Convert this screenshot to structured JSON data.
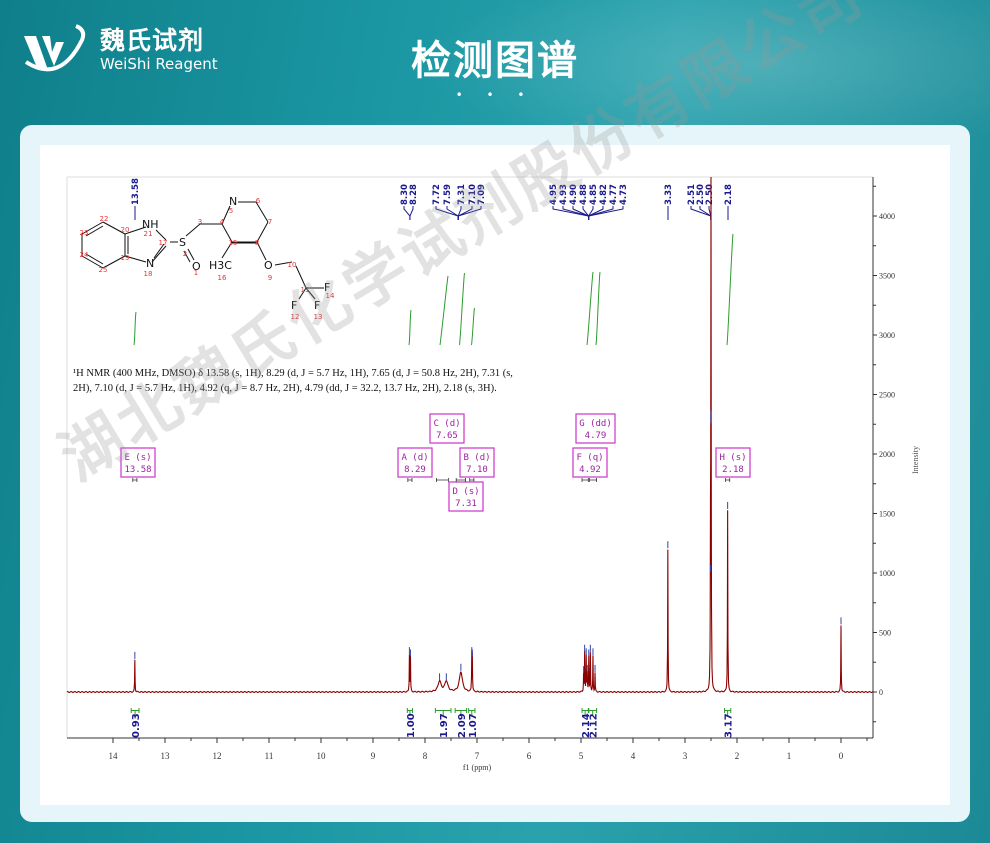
{
  "header": {
    "logo_cn": "魏氏试剂",
    "logo_en": "WeiShi Reagent",
    "title": "检测图谱",
    "dots": "• • •"
  },
  "watermark": "湖北魏氏化学试剂股份有限公司",
  "colors": {
    "spectrum": "#8b0000",
    "integral": "#2e9b2e",
    "peak_label": "#1a1a8c",
    "multiplet_box": "#cc33cc",
    "header_bg": "#1a97a3"
  },
  "nmr_description": "¹H NMR (400 MHz, DMSO) δ 13.58 (s, 1H), 8.29 (d, J = 5.7 Hz, 1H), 7.65 (d, J = 50.8 Hz, 2H), 7.31 (s, 2H), 7.10 (d, J = 5.7 Hz, 1H), 4.92 (q, J = 8.7 Hz, 2H), 4.79 (dd, J = 32.2, 13.7 Hz, 2H), 2.18 (s, 3H).",
  "structure": {
    "atoms": [
      "NH",
      "N",
      "S",
      "O",
      "N",
      "H3C",
      "O",
      "F",
      "F",
      "F"
    ],
    "numbers": [
      "1",
      "2",
      "3",
      "4",
      "5",
      "6",
      "7",
      "8",
      "9",
      "10",
      "11",
      "12",
      "13",
      "14",
      "15",
      "16",
      "17",
      "18",
      "19",
      "20",
      "21",
      "22",
      "23",
      "24",
      "25"
    ]
  },
  "chart_data": {
    "type": "line",
    "xlabel": "f1 (ppm)",
    "ylabel": "Intensity",
    "xlim": [
      14.5,
      -0.6
    ],
    "ylim": [
      -350,
      4300
    ],
    "x_ticks": [
      "14",
      "13",
      "12",
      "11",
      "10",
      "9",
      "8",
      "7",
      "6",
      "5",
      "4",
      "3",
      "2",
      "1",
      "0"
    ],
    "y_ticks": [
      "0",
      "500",
      "1000",
      "1500",
      "2000",
      "2500",
      "3000",
      "3500",
      "4000"
    ],
    "peaks": [
      [
        13.58,
        270
      ],
      [
        8.3,
        310
      ],
      [
        8.28,
        290
      ],
      [
        7.72,
        90
      ],
      [
        7.59,
        90
      ],
      [
        7.31,
        170
      ],
      [
        7.1,
        310
      ],
      [
        7.09,
        290
      ],
      [
        4.95,
        150
      ],
      [
        4.93,
        330
      ],
      [
        4.9,
        300
      ],
      [
        4.88,
        160
      ],
      [
        4.85,
        290
      ],
      [
        4.82,
        330
      ],
      [
        4.77,
        300
      ],
      [
        4.73,
        160
      ],
      [
        3.33,
        1200
      ],
      [
        2.51,
        1000
      ],
      [
        2.5,
        2300
      ],
      [
        2.5,
        2250
      ],
      [
        2.18,
        1530
      ],
      [
        0.0,
        560
      ]
    ],
    "peak_labels": [
      {
        "group": [
          13.58
        ],
        "labels": [
          "13.58"
        ]
      },
      {
        "group": [
          8.3,
          8.28
        ],
        "labels": [
          "8.30",
          "8.28"
        ]
      },
      {
        "group": [
          7.72,
          7.59,
          7.31,
          7.1,
          7.09
        ],
        "labels": [
          "7.72",
          "7.59",
          "7.31",
          "7.10",
          "7.09"
        ]
      },
      {
        "group": [
          4.95,
          4.93,
          4.9,
          4.88,
          4.85,
          4.82,
          4.77,
          4.73
        ],
        "labels": [
          "4.95",
          "4.93",
          "4.90",
          "4.88",
          "4.85",
          "4.82",
          "4.77",
          "4.73"
        ]
      },
      {
        "group": [
          3.33
        ],
        "labels": [
          "3.33"
        ]
      },
      {
        "group": [
          2.51,
          2.5,
          2.5
        ],
        "labels": [
          "2.51",
          "2.50",
          "2.50"
        ]
      },
      {
        "group": [
          2.18
        ],
        "labels": [
          "2.18"
        ]
      }
    ],
    "multiplets": [
      {
        "id": "E",
        "mult": "s",
        "shift": "13.58",
        "range": [
          13.62,
          13.54
        ]
      },
      {
        "id": "A",
        "mult": "d",
        "shift": "8.29",
        "range": [
          8.33,
          8.25
        ]
      },
      {
        "id": "C",
        "mult": "d",
        "shift": "7.65",
        "range": [
          7.78,
          7.55
        ]
      },
      {
        "id": "B",
        "mult": "d",
        "shift": "7.10",
        "range": [
          7.14,
          7.06
        ]
      },
      {
        "id": "D",
        "mult": "s",
        "shift": "7.31",
        "range": [
          7.4,
          7.22
        ]
      },
      {
        "id": "G",
        "mult": "dd",
        "shift": "4.79",
        "range": [
          4.84,
          4.7
        ]
      },
      {
        "id": "F",
        "mult": "q",
        "shift": "4.92",
        "range": [
          4.98,
          4.86
        ]
      },
      {
        "id": "H",
        "mult": "s",
        "shift": "2.18",
        "range": [
          2.22,
          2.14
        ]
      }
    ],
    "integrals": [
      {
        "range": [
          13.65,
          13.5
        ],
        "value": "0.93"
      },
      {
        "range": [
          8.34,
          8.24
        ],
        "value": "1.00"
      },
      {
        "range": [
          7.8,
          7.5
        ],
        "value": "1.97"
      },
      {
        "range": [
          7.42,
          7.2
        ],
        "value": "2.09"
      },
      {
        "range": [
          7.16,
          7.04
        ],
        "value": "1.07"
      },
      {
        "range": [
          4.98,
          4.86
        ],
        "value": "2.14"
      },
      {
        "range": [
          4.85,
          4.7
        ],
        "value": "2.12"
      },
      {
        "range": [
          2.24,
          2.12
        ],
        "value": "3.17"
      }
    ]
  }
}
